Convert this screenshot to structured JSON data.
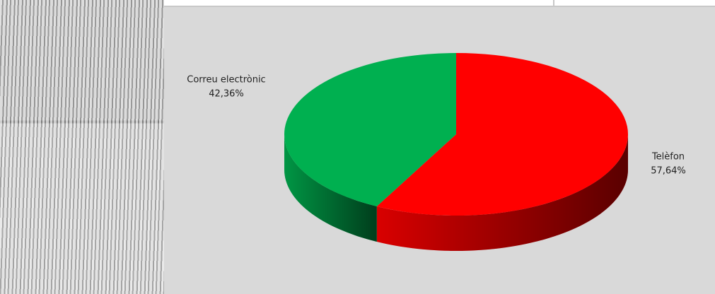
{
  "chart_data": {
    "type": "pie",
    "categories": [
      "Telèfon",
      "Correu electrònic"
    ],
    "values": [
      57.64,
      42.36
    ],
    "value_labels": [
      "57,64%",
      "42,36%"
    ],
    "colors": [
      "#ff0000",
      "#00b050"
    ]
  }
}
